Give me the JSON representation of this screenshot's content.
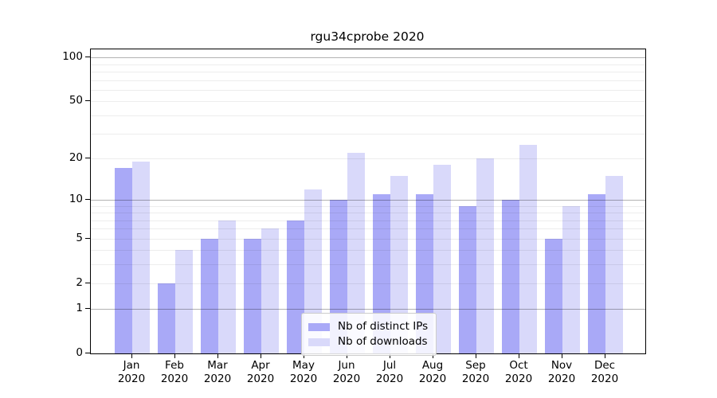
{
  "title": "rgu34cprobe 2020",
  "colors": {
    "background": "#ffffff",
    "bar_distinct_ips": "#a9a9f7",
    "bar_downloads": "#d9d9fa",
    "grid_minor": "rgba(0,0,0,0.07)",
    "grid_major": "rgba(0,0,0,0.30)",
    "axis": "#000000",
    "legend_border": "#cccccc",
    "text": "#000000"
  },
  "chart_data": {
    "type": "bar",
    "title": "rgu34cprobe 2020",
    "yscale": "log10(1+x)",
    "xlabel": "",
    "ylabel": "",
    "categories": [
      "Jan",
      "Feb",
      "Mar",
      "Apr",
      "May",
      "Jun",
      "Jul",
      "Aug",
      "Sep",
      "Oct",
      "Nov",
      "Dec"
    ],
    "category_year": "2020",
    "series": [
      {
        "name": "Nb of distinct IPs",
        "color": "#a9a9f7",
        "values": [
          17,
          2,
          5,
          5,
          7,
          10,
          11,
          11,
          9,
          10,
          5,
          11
        ]
      },
      {
        "name": "Nb of downloads",
        "color": "#d9d9fa",
        "values": [
          19,
          4,
          7,
          6,
          12,
          22,
          15,
          18,
          20,
          25,
          9,
          15
        ]
      }
    ],
    "yticks": [
      0,
      1,
      2,
      5,
      10,
      20,
      50,
      100
    ],
    "ylim": [
      0,
      115
    ],
    "grid": true,
    "minor_gridlines": [
      2,
      3,
      4,
      5,
      6,
      7,
      8,
      9,
      20,
      30,
      40,
      50,
      60,
      70,
      80,
      90
    ],
    "major_gridlines": [
      1,
      10,
      100
    ],
    "legend_position": "lower-center"
  }
}
